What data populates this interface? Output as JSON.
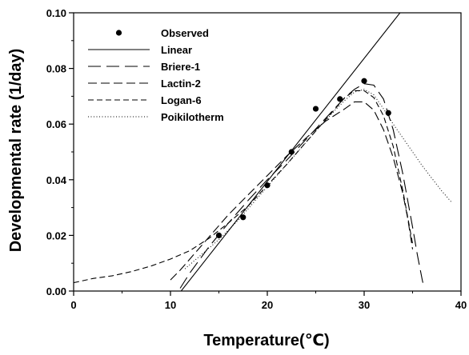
{
  "chart_data": {
    "type": "line",
    "title": "",
    "xlabel": "Temperature(℃)",
    "ylabel": "Developmental rate (1/day)",
    "xlim": [
      0,
      40
    ],
    "ylim": [
      0,
      0.1
    ],
    "xticks": [
      0,
      10,
      20,
      30,
      40
    ],
    "yticks": [
      0.0,
      0.02,
      0.04,
      0.06,
      0.08,
      0.1
    ],
    "xtick_labels": [
      "0",
      "10",
      "20",
      "30",
      "40"
    ],
    "ytick_labels": [
      "0.00",
      "0.02",
      "0.04",
      "0.06",
      "0.08",
      "0.10"
    ],
    "grid": false,
    "legend_position": "top-left",
    "series": [
      {
        "name": "Observed",
        "kind": "points",
        "x": [
          15,
          17.5,
          20,
          22.5,
          25,
          27.5,
          30,
          32.5
        ],
        "y": [
          0.02,
          0.0265,
          0.038,
          0.05,
          0.0655,
          0.069,
          0.0755,
          0.064
        ]
      },
      {
        "name": "Linear",
        "kind": "line",
        "dash": "solid",
        "x": [
          11.1,
          33.7
        ],
        "y": [
          0.0,
          0.1
        ]
      },
      {
        "name": "Briere-1",
        "kind": "line",
        "dash": "long-dash",
        "x": [
          11.0,
          12,
          14,
          16,
          18,
          20,
          22,
          24,
          26,
          28,
          29,
          30,
          31,
          32,
          33,
          34,
          35,
          35.5,
          36.0,
          36.2
        ],
        "y": [
          0.001,
          0.0065,
          0.016,
          0.0245,
          0.0325,
          0.04,
          0.047,
          0.0545,
          0.062,
          0.0695,
          0.0725,
          0.0745,
          0.074,
          0.069,
          0.058,
          0.042,
          0.023,
          0.013,
          0.004,
          0.001
        ]
      },
      {
        "name": "Lactin-2",
        "kind": "line",
        "dash": "medium-dash",
        "x": [
          10.0,
          11,
          12,
          14,
          16,
          18,
          20,
          22,
          24,
          26,
          28,
          29,
          30,
          31,
          32,
          33,
          34,
          34.5,
          35.0
        ],
        "y": [
          0.004,
          0.0075,
          0.0115,
          0.0195,
          0.0275,
          0.0345,
          0.0415,
          0.0485,
          0.055,
          0.061,
          0.0655,
          0.068,
          0.068,
          0.065,
          0.058,
          0.048,
          0.035,
          0.026,
          0.015
        ]
      },
      {
        "name": "Logan-6",
        "kind": "line",
        "dash": "short-dash",
        "x": [
          0,
          2,
          4,
          6,
          8,
          10,
          12,
          14,
          16,
          18,
          20,
          22,
          24,
          26,
          28,
          29,
          30,
          31,
          32,
          33,
          34,
          35
        ],
        "y": [
          0.003,
          0.0045,
          0.0055,
          0.007,
          0.009,
          0.0115,
          0.0145,
          0.019,
          0.0245,
          0.0305,
          0.038,
          0.0455,
          0.0535,
          0.0615,
          0.0695,
          0.072,
          0.072,
          0.0695,
          0.063,
          0.052,
          0.036,
          0.017
        ]
      },
      {
        "name": "Poikilotherm",
        "kind": "line",
        "dash": "dotted",
        "x": [
          11.5,
          13,
          15,
          17,
          19,
          21,
          23,
          25,
          27,
          28,
          29,
          30,
          31,
          32,
          33,
          34,
          35,
          36,
          37,
          38,
          39
        ],
        "y": [
          0.008,
          0.0125,
          0.0185,
          0.0255,
          0.0335,
          0.0415,
          0.0495,
          0.0575,
          0.065,
          0.0685,
          0.0715,
          0.0725,
          0.0705,
          0.0655,
          0.06,
          0.055,
          0.05,
          0.045,
          0.0405,
          0.036,
          0.032
        ]
      }
    ]
  }
}
